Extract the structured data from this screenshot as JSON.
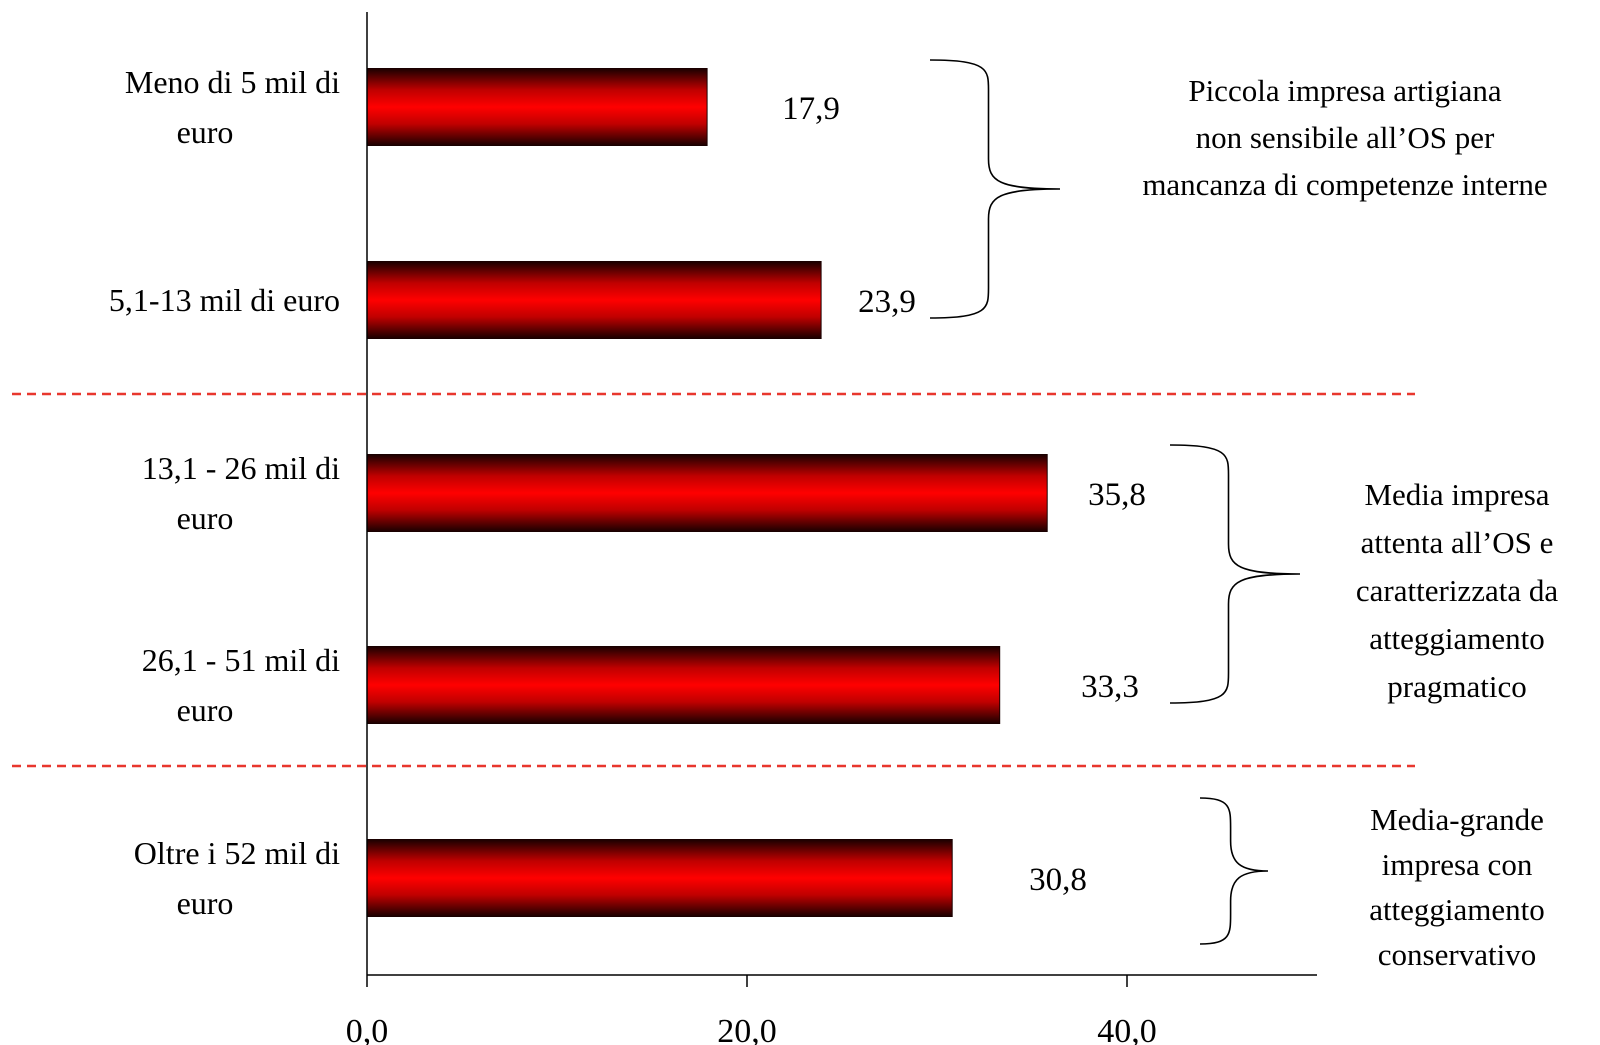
{
  "chart_data": {
    "type": "bar",
    "orientation": "horizontal",
    "title": "",
    "xlabel": "",
    "ylabel": "",
    "categories": [
      [
        "Meno di 5 mil di",
        "euro"
      ],
      [
        "5,1-13 mil di euro"
      ],
      [
        "13,1 - 26 mil di",
        "euro"
      ],
      [
        "26,1 - 51 mil di",
        "euro"
      ],
      [
        "Oltre i 52 mil di",
        "euro"
      ]
    ],
    "values": [
      17.9,
      23.9,
      35.8,
      33.3,
      30.8
    ],
    "value_labels": [
      "17,9",
      "23,9",
      "35,8",
      "33,3",
      "30,8"
    ],
    "xlim": [
      0,
      50
    ],
    "x_ticks": [
      0,
      20,
      40
    ],
    "x_tick_labels": [
      "0,0",
      "20,0",
      "40,0"
    ],
    "grid": false,
    "legend": "none",
    "bar_color": "#ff0000",
    "bar_edge_color": "#1a0000",
    "separator_color": "#e8372e",
    "groups": [
      {
        "categories": [
          0,
          1
        ],
        "label_lines": [
          "Piccola impresa artigiana",
          "non sensibile all’OS per",
          "mancanza di competenze interne"
        ]
      },
      {
        "categories": [
          2,
          3
        ],
        "label_lines": [
          "Media impresa",
          "attenta all’OS e",
          "caratterizzata da",
          "atteggiamento",
          "pragmatico"
        ]
      },
      {
        "categories": [
          4
        ],
        "label_lines": [
          "Media-grande",
          "impresa con",
          "atteggiamento",
          "conservativo"
        ]
      }
    ]
  }
}
